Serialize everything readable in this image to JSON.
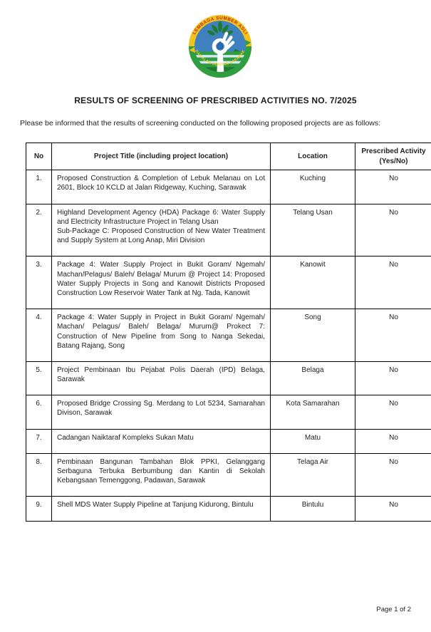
{
  "logo": {
    "top_text": "LEMBAGA SUMBER ASLI",
    "bottom_text": "DAN ALAM SEKITAR SARAWAK",
    "colors": {
      "ring_top": "#F2C21C",
      "ring_bottom": "#2F9E41",
      "inner_circle": "#3F80BF",
      "top_text_color": "#C4281C",
      "bottom_text_color": "#F5D021",
      "leaf_dark_green": "#1F7A2E",
      "droplet_blue": "#2A6DB8"
    }
  },
  "title": "RESULTS OF SCREENING OF PRESCRIBED ACTIVITIES NO. 7/2025",
  "intro": "Please be informed that the results of screening conducted on the following proposed projects are as follows:",
  "table": {
    "headers": {
      "no": "No",
      "project": "Project Title (including project location)",
      "location": "Location",
      "prescribed": "Prescribed Activity (Yes/No)"
    },
    "rows": [
      {
        "no": "1.",
        "title": [
          "Proposed Construction & Completion of Lebuk Melanau on Lot 2601, Block 10 KCLD at Jalan Ridgeway, Kuching, Sarawak"
        ],
        "location": "Kuching",
        "prescribed": "No"
      },
      {
        "no": "2.",
        "title": [
          "Highland Development Agency (HDA) Package 6: Water Supply and Electricity Infrastructure Project in Telang Usan",
          "Sub-Package C: Proposed Construction of New Water Treatment and Supply System at Long Anap, Miri Division"
        ],
        "location": "Telang Usan",
        "prescribed": "No"
      },
      {
        "no": "3.",
        "title": [
          "Package 4: Water Supply Project in Bukit Goram/ Ngemah/ Machan/Pelagus/ Baleh/ Belaga/ Murum @ Project 14: Proposed Water Supply Projects in Song and Kanowit Districts Proposed Construction Low Reservoir Water Tank at Ng. Tada, Kanowit"
        ],
        "location": "Kanowit",
        "prescribed": "No"
      },
      {
        "no": "4.",
        "title": [
          "Package 4: Water Supply in Project in Bukit Goram/ Ngemah/ Machan/ Pelagus/ Baleh/ Belaga/ Murum@ Prokect 7: Construction of New Pipeline from Song to Nanga Sekedai, Batang Rajang, Song"
        ],
        "location": "Song",
        "prescribed": "No"
      },
      {
        "no": "5.",
        "title": [
          "Project Pembinaan Ibu Pejabat Polis Daerah (IPD) Belaga, Sarawak"
        ],
        "location": "Belaga",
        "prescribed": "No"
      },
      {
        "no": "6.",
        "title": [
          "Proposed Bridge Crossing Sg. Merdang to Lot 5234, Samarahan Divison, Sarawak"
        ],
        "location": "Kota Samarahan",
        "prescribed": "No"
      },
      {
        "no": "7.",
        "title": [
          "Cadangan Naiktaraf Kompleks Sukan Matu"
        ],
        "location": "Matu",
        "prescribed": "No"
      },
      {
        "no": "8.",
        "title": [
          "Pembinaan Bangunan Tambahan Blok PPKI, Gelanggang Serbaguna Terbuka Berbumbung dan Kantin di Sekolah Kebangsaan Temenggong, Padawan, Sarawak"
        ],
        "location": "Telaga Air",
        "prescribed": "No"
      },
      {
        "no": "9.",
        "title": [
          "Shell MDS Water Supply Pipeline at Tanjung Kidurong, Bintulu"
        ],
        "location": "Bintulu",
        "prescribed": "No"
      }
    ]
  },
  "footer": {
    "page_label": "Page 1 of 2"
  }
}
